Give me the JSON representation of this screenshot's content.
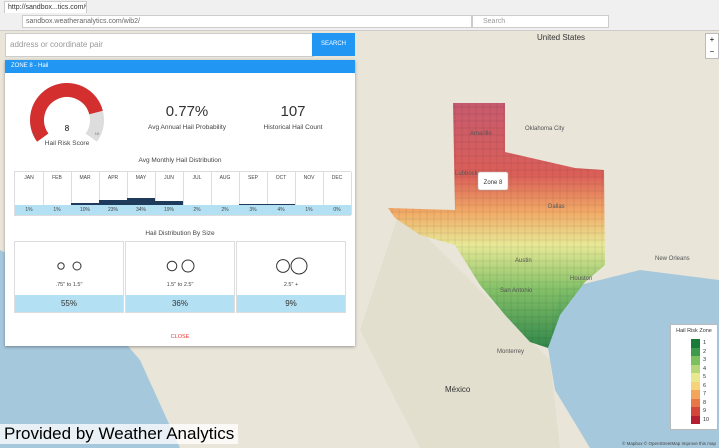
{
  "browser": {
    "tab_title": "http://sandbox...tics.com/wib2/",
    "url": "sandbox.weatheranalytics.com/wib2/",
    "search_placeholder": "Search"
  },
  "search": {
    "placeholder": "address or coordinate pair",
    "button": "SEARCH"
  },
  "panel": {
    "title": "ZONE 8 - Hail",
    "gauge": {
      "value": 8,
      "min": 0,
      "max": 10,
      "label": "Hail Risk Score"
    },
    "stats": [
      {
        "value": "0.77%",
        "label": "Avg Annual Hail Probability"
      },
      {
        "value": "107",
        "label": "Historical Hail Count"
      }
    ],
    "monthly": {
      "title": "Avg Monthly Hail Distribution",
      "months": [
        "JAN",
        "FEB",
        "MAR",
        "APR",
        "MAY",
        "JUN",
        "JUL",
        "AUG",
        "SEP",
        "OCT",
        "NOV",
        "DEC"
      ],
      "values": [
        1,
        1,
        10,
        23,
        34,
        19,
        2,
        2,
        3,
        4,
        1,
        0
      ],
      "value_labels": [
        "1%",
        "1%",
        "10%",
        "23%",
        "34%",
        "19%",
        "2%",
        "2%",
        "3%",
        "4%",
        "1%",
        "0%"
      ]
    },
    "sizes": {
      "title": "Hail Distribution By Size",
      "items": [
        {
          "label": ".75\" to 1.5\"",
          "value": "55%"
        },
        {
          "label": "1.5\" to 2.5\"",
          "value": "36%"
        },
        {
          "label": "2.5\" +",
          "value": "9%"
        }
      ]
    },
    "close": "CLOSE"
  },
  "map": {
    "labels": [
      "United States",
      "Oklahoma City",
      "Amarillo",
      "Lubbock",
      "Dallas",
      "Austin",
      "San Antonio",
      "Houston",
      "New Orleans",
      "Monterrey",
      "México"
    ],
    "popup": "Zone 8",
    "zoom_in": "+",
    "zoom_out": "−",
    "attribution": "© Mapbox © OpenStreetMap Improve this map"
  },
  "legend": {
    "title": "Hail Risk Zone",
    "zones": [
      1,
      2,
      3,
      4,
      5,
      6,
      7,
      8,
      9,
      10
    ],
    "colors": [
      "#1a7a3a",
      "#3d9a4a",
      "#7cbf5d",
      "#b5d77a",
      "#e8e98f",
      "#f6d27a",
      "#f3a55a",
      "#e87748",
      "#d4453a",
      "#b31f2e"
    ]
  },
  "footer": "Provided by Weather Analytics"
}
